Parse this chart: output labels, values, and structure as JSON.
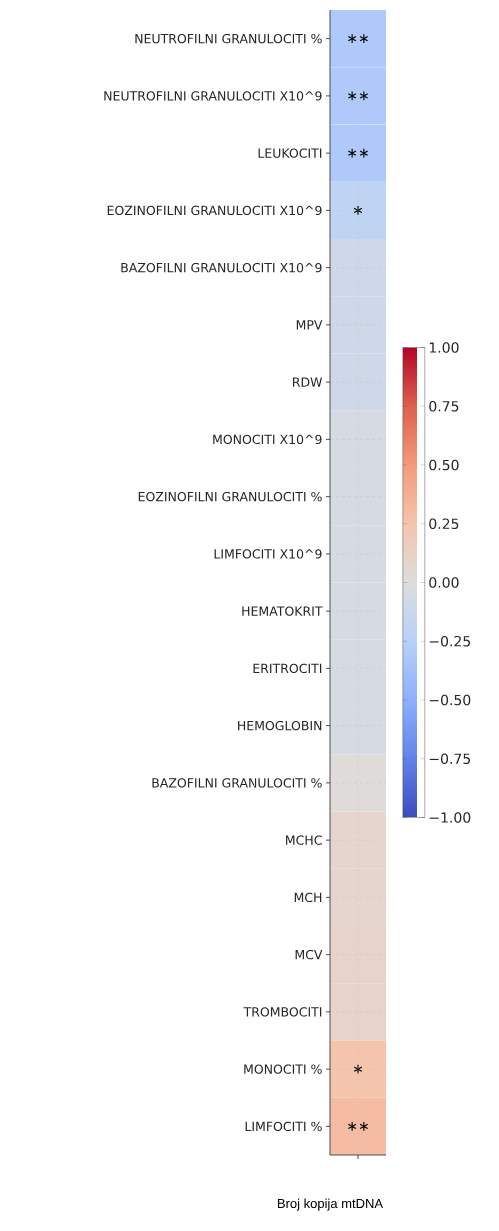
{
  "chart_data": {
    "type": "heatmap",
    "xlabel": "Broj kopija mtDNA",
    "categories": [
      null
    ],
    "y_categories": [
      "NEUTROFILNI GRANULOCITI %",
      "NEUTROFILNI GRANULOCITI X10^9",
      "LEUKOCITI",
      "EOZINOFILNI GRANULOCITI X10^9",
      "BAZOFILNI GRANULOCITI X10^9",
      "MPV",
      "RDW",
      "MONOCITI X10^9",
      "EOZINOFILNI GRANULOCITI %",
      "LIMFOCITI  X10^9",
      "HEMATOKRIT",
      "ERITROCITI",
      "HEMOGLOBIN",
      "BAZOFILNI GRANULOCITI %",
      "MCHC",
      "MCH",
      "MCV",
      "TROMBOCITI",
      "MONOCITI %",
      "LIMFOCITI  %"
    ],
    "cells": [
      [
        -0.3
      ],
      [
        -0.3
      ],
      [
        -0.3
      ],
      [
        -0.2
      ],
      [
        -0.1
      ],
      [
        -0.1
      ],
      [
        -0.1
      ],
      [
        -0.05
      ],
      [
        -0.05
      ],
      [
        -0.05
      ],
      [
        -0.05
      ],
      [
        -0.05
      ],
      [
        -0.05
      ],
      [
        0.02
      ],
      [
        0.08
      ],
      [
        0.08
      ],
      [
        0.1
      ],
      [
        0.1
      ],
      [
        0.25
      ],
      [
        0.3
      ]
    ],
    "cell_labels": [
      [
        "∗∗"
      ],
      [
        "∗∗"
      ],
      [
        "∗∗"
      ],
      [
        "∗"
      ],
      [
        null
      ],
      [
        null
      ],
      [
        null
      ],
      [
        null
      ],
      [
        null
      ],
      [
        null
      ],
      [
        null
      ],
      [
        null
      ],
      [
        null
      ],
      [
        null
      ],
      [
        null
      ],
      [
        null
      ],
      [
        null
      ],
      [
        null
      ],
      [
        "∗"
      ],
      [
        "∗∗"
      ]
    ],
    "clim": [
      -1,
      1
    ],
    "cticks": [
      {
        "value": -1,
        "label": "−1.00"
      },
      {
        "value": -0.75,
        "label": "−0.75"
      },
      {
        "value": -0.5,
        "label": "−0.50"
      },
      {
        "value": -0.25,
        "label": "−0.25"
      },
      {
        "value": 0,
        "label": "0.00"
      },
      {
        "value": 0.25,
        "label": "0.25"
      },
      {
        "value": 0.5,
        "label": "0.50"
      },
      {
        "value": 0.75,
        "label": "0.75"
      },
      {
        "value": 1,
        "label": "1.00"
      }
    ],
    "grid": true
  }
}
